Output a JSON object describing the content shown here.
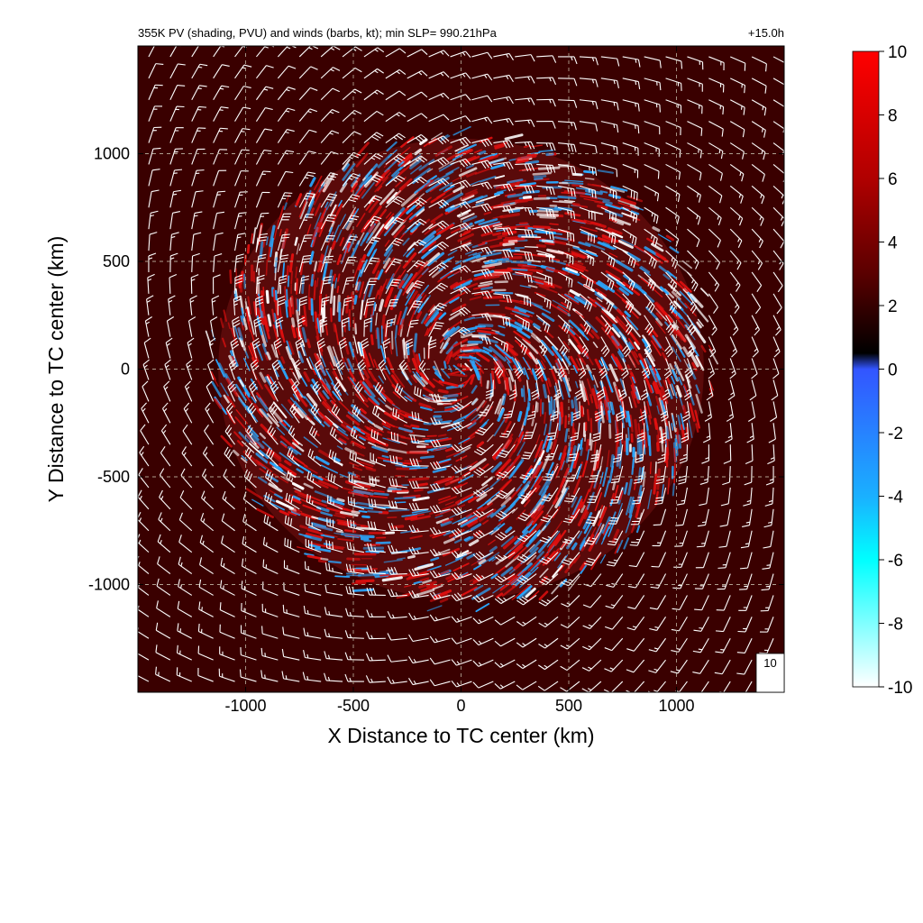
{
  "chart_data": {
    "type": "heatmap",
    "title": "355K PV (shading, PVU) and winds (barbs, kt); min SLP= 990.21hPa",
    "time_label": "+15.0h",
    "xlabel": "X Distance to TC center (km)",
    "ylabel": "Y Distance to TC center (km)",
    "xlim": [
      -1500,
      1500
    ],
    "ylim": [
      -1500,
      1500
    ],
    "x_ticks": [
      -1000,
      -500,
      0,
      500,
      1000
    ],
    "y_ticks": [
      -1000,
      -500,
      0,
      500,
      1000
    ],
    "x_tick_labels": [
      "-1000",
      "-500",
      "0",
      "500",
      "1000"
    ],
    "y_tick_labels": [
      "-1000",
      "-500",
      "0",
      "500",
      "1000"
    ],
    "grid": true,
    "colorbar": {
      "min": -10,
      "max": 10,
      "ticks": [
        10,
        8,
        6,
        4,
        2,
        0,
        -2,
        -4,
        -6,
        -8,
        -10
      ],
      "tick_labels": [
        "10",
        "8",
        "6",
        "4",
        "2",
        "0",
        "-2",
        "-4",
        "-6",
        "-8",
        "-10"
      ],
      "stops": [
        {
          "value": 10,
          "color": "#ff0000"
        },
        {
          "value": 6,
          "color": "#b00000"
        },
        {
          "value": 3,
          "color": "#5a0000"
        },
        {
          "value": 0.5,
          "color": "#000000"
        },
        {
          "value": 0,
          "color": "#3355ff"
        },
        {
          "value": -4,
          "color": "#1ab0ff"
        },
        {
          "value": -6,
          "color": "#00ffff"
        },
        {
          "value": -10,
          "color": "#ffffff"
        }
      ]
    },
    "background_color": "#3a0000",
    "storm": {
      "center_km": [
        0,
        0
      ],
      "pv_core_radius_km": 1150,
      "rotation": "counterclockwise",
      "colors": {
        "positive": "#e01010",
        "negative": "#2aa8ff",
        "extreme": "#ffffff"
      }
    },
    "wind_barbs": {
      "units": "kt",
      "spacing_km": 100,
      "reference_label": "10",
      "reference_speed_kt": 10
    }
  }
}
